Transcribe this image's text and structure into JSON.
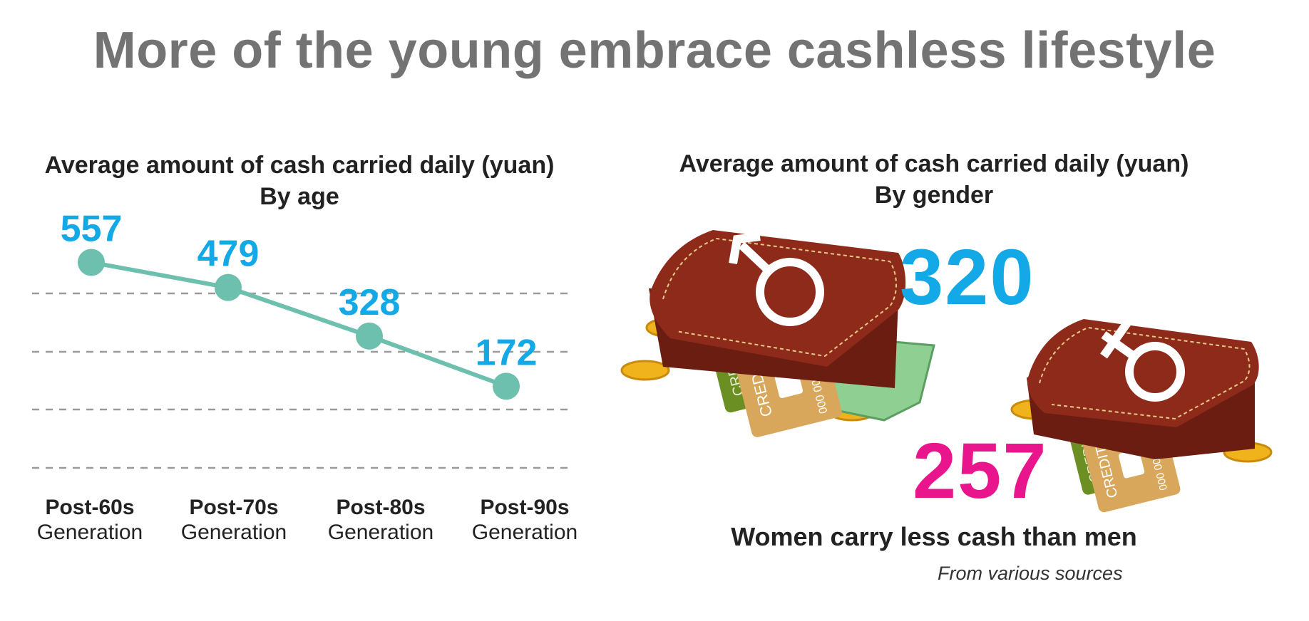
{
  "title": "More of the young embrace cashless lifestyle",
  "left_panel": {
    "subtitle_line1": "Average amount of cash carried daily (yuan)",
    "subtitle_line2": "By age"
  },
  "right_panel": {
    "subtitle_line1": "Average amount of cash carried daily (yuan)",
    "subtitle_line2": "By gender",
    "conclusion": "Women carry less cash than men",
    "source": "From various sources",
    "male_value": "320",
    "female_value": "257",
    "card_text": "CREDIT CARD",
    "card_number": "000 000"
  },
  "colors": {
    "title": "#737373",
    "line": "#6dbfae",
    "data_label": "#12a9e6",
    "male_number": "#12a9e6",
    "female_number": "#e8158c",
    "wallet": "#8e2a1a",
    "coin": "#f0b31c",
    "card_gold": "#d9a75c",
    "card_green": "#6b8f22",
    "banknote": "#8fcf92"
  },
  "chart_data": [
    {
      "type": "line",
      "title": "Average amount of cash carried daily (yuan) By age",
      "categories": [
        {
          "line1": "Post-60s",
          "line2": "Generation"
        },
        {
          "line1": "Post-70s",
          "line2": "Generation"
        },
        {
          "line1": "Post-80s",
          "line2": "Generation"
        },
        {
          "line1": "Post-90s",
          "line2": "Generation"
        }
      ],
      "values": [
        557,
        479,
        328,
        172
      ],
      "data_labels": [
        "557",
        "479",
        "328",
        "172"
      ],
      "grid": true,
      "ylim": [
        0,
        620
      ]
    },
    {
      "type": "pictorial",
      "title": "Average amount of cash carried daily (yuan) By gender",
      "categories": [
        "Male",
        "Female"
      ],
      "values": [
        320,
        257
      ]
    }
  ]
}
